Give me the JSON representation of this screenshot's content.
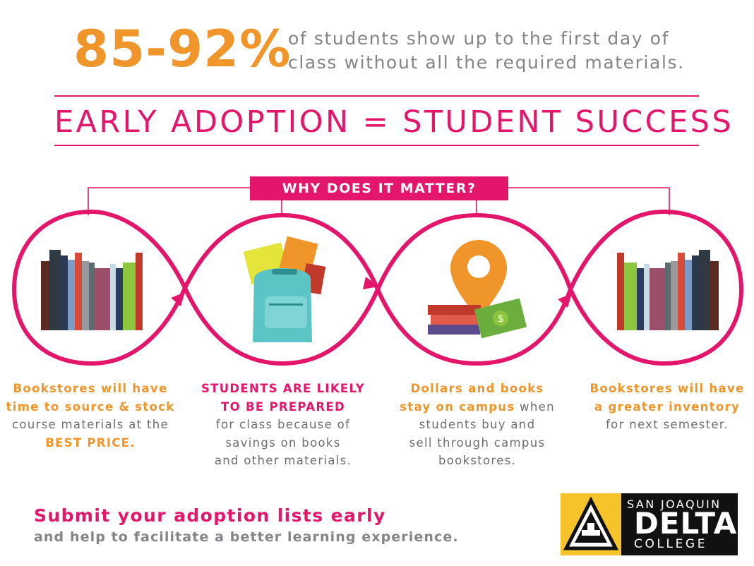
{
  "header": {
    "stat_number": "85-92%",
    "stat_text_line1": "of students show up to the first day of",
    "stat_text_line2": "class without all the required materials."
  },
  "headline": "EARLY ADOPTION = STUDENT SUCCESS",
  "why_label": "WHY DOES IT MATTER?",
  "captions": [
    {
      "line1": "Bookstores will have",
      "line2": "time to source & stock",
      "line3": "course materials at the",
      "line4": "BEST PRICE."
    },
    {
      "line1": "STUDENTS ARE LIKELY",
      "line2": "TO BE PREPARED",
      "line3": "for class because of",
      "line4": "savings on books",
      "line5": "and other materials."
    },
    {
      "line1": "Dollars and books",
      "line2a": "stay on campus",
      "line2b": " when",
      "line3": "students buy and",
      "line4": "sell through campus",
      "line5": "bookstores."
    },
    {
      "line1": "Bookstores will have",
      "line2": "a greater inventory",
      "line3": "for next semester."
    }
  ],
  "cta": {
    "title": "Submit your adoption lists early",
    "subtitle": "and help to facilitate a better learning experience."
  },
  "logo": {
    "line1": "SAN JOAQUIN",
    "line2": "DELTA",
    "line3": "COLLEGE"
  },
  "colors": {
    "pink": "#e4166c",
    "orange": "#f0952a",
    "gray": "#858589",
    "logo_yellow": "#f6c32b"
  },
  "icons": [
    "books-icon",
    "backpack-icon",
    "location-pin-icon",
    "money-icon",
    "books-icon"
  ]
}
